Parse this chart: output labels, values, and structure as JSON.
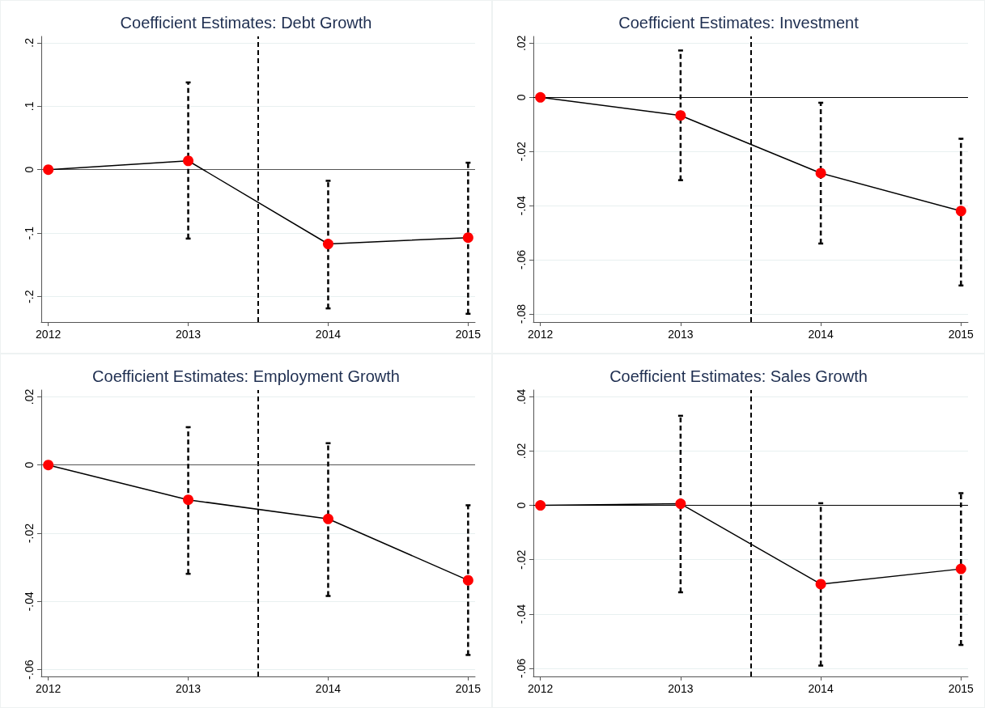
{
  "chart_data": [
    {
      "type": "line",
      "title": "Coefficient Estimates: Debt Growth",
      "x": [
        2012,
        2013,
        2014,
        2015
      ],
      "series": [
        {
          "color": "#ff0000",
          "values": [
            0,
            0.014,
            -0.117,
            -0.107
          ],
          "errors": [
            null,
            [
              -0.1085,
              0.1375
            ],
            [
              -0.2185,
              -0.0175
            ],
            [
              -0.227,
              0.011
            ]
          ]
        }
      ],
      "xlim": [
        2011.95,
        2015.05
      ],
      "xticks": [
        2012,
        2013,
        2014,
        2015
      ],
      "ylim": [
        -0.24,
        0.21
      ],
      "yticks": [
        {
          "value": -0.2,
          "label": "-.2"
        },
        {
          "value": -0.1,
          "label": "-.1"
        },
        {
          "value": 0,
          "label": "0"
        },
        {
          "value": 0.1,
          "label": ".1"
        },
        {
          "value": 0.2,
          "label": ".2"
        }
      ],
      "ref_lines": [
        {
          "axis": "x",
          "value": 2013.5,
          "color": "#000000",
          "line_style": "dashed"
        },
        {
          "axis": "y",
          "value": 0,
          "color": "#555555",
          "line_style": "solid"
        }
      ],
      "grid": "y",
      "marker": "circle",
      "line_style": "solid"
    },
    {
      "type": "line",
      "title": "Coefficient Estimates: Investment",
      "x": [
        2012,
        2013,
        2014,
        2015
      ],
      "series": [
        {
          "color": "#ff0000",
          "values": [
            0,
            -0.0067,
            -0.028,
            -0.042
          ],
          "errors": [
            null,
            [
              -0.0306,
              0.0173
            ],
            [
              -0.054,
              -0.002
            ],
            [
              -0.0695,
              -0.0153
            ]
          ]
        }
      ],
      "xlim": [
        2011.95,
        2015.05
      ],
      "xticks": [
        2012,
        2013,
        2014,
        2015
      ],
      "ylim": [
        -0.083,
        0.0225
      ],
      "yticks": [
        {
          "value": -0.08,
          "label": "-.08"
        },
        {
          "value": -0.06,
          "label": "-.06"
        },
        {
          "value": -0.04,
          "label": "-.04"
        },
        {
          "value": -0.02,
          "label": "-.02"
        },
        {
          "value": 0,
          "label": "0"
        },
        {
          "value": 0.02,
          "label": ".02"
        }
      ],
      "ref_lines": [
        {
          "axis": "x",
          "value": 2013.5,
          "color": "#000000",
          "line_style": "dashed"
        },
        {
          "axis": "y",
          "value": 0,
          "color": "#000000",
          "line_style": "solid"
        }
      ],
      "grid": "y",
      "marker": "circle",
      "line_style": "solid"
    },
    {
      "type": "line",
      "title": "Coefficient Estimates: Employment Growth",
      "x": [
        2012,
        2013,
        2014,
        2015
      ],
      "series": [
        {
          "color": "#ff0000",
          "values": [
            0,
            -0.0102,
            -0.0158,
            -0.0338
          ],
          "errors": [
            null,
            [
              -0.0319,
              0.0111
            ],
            [
              -0.0384,
              0.0064
            ],
            [
              -0.0557,
              -0.0118
            ]
          ]
        }
      ],
      "xlim": [
        2011.95,
        2015.05
      ],
      "xticks": [
        2012,
        2013,
        2014,
        2015
      ],
      "ylim": [
        -0.062,
        0.022
      ],
      "yticks": [
        {
          "value": -0.06,
          "label": "-.06"
        },
        {
          "value": -0.04,
          "label": "-.04"
        },
        {
          "value": -0.02,
          "label": "-.02"
        },
        {
          "value": 0,
          "label": "0"
        },
        {
          "value": 0.02,
          "label": ".02"
        }
      ],
      "ref_lines": [
        {
          "axis": "x",
          "value": 2013.5,
          "color": "#000000",
          "line_style": "dashed"
        },
        {
          "axis": "y",
          "value": 0,
          "color": "#555555",
          "line_style": "solid"
        }
      ],
      "grid": "y",
      "marker": "circle",
      "line_style": "solid"
    },
    {
      "type": "line",
      "title": "Coefficient Estimates: Sales Growth",
      "x": [
        2012,
        2013,
        2014,
        2015
      ],
      "series": [
        {
          "color": "#ff0000",
          "values": [
            0,
            0.0006,
            -0.029,
            -0.0234
          ],
          "errors": [
            null,
            [
              -0.032,
              0.033
            ],
            [
              -0.059,
              0.0008
            ],
            [
              -0.0514,
              0.0045
            ]
          ]
        }
      ],
      "xlim": [
        2011.95,
        2015.05
      ],
      "xticks": [
        2012,
        2013,
        2014,
        2015
      ],
      "ylim": [
        -0.063,
        0.0425
      ],
      "yticks": [
        {
          "value": -0.06,
          "label": "-.06"
        },
        {
          "value": -0.04,
          "label": "-.04"
        },
        {
          "value": -0.02,
          "label": "-.02"
        },
        {
          "value": 0,
          "label": "0"
        },
        {
          "value": 0.02,
          "label": ".02"
        },
        {
          "value": 0.04,
          "label": ".04"
        }
      ],
      "ref_lines": [
        {
          "axis": "x",
          "value": 2013.5,
          "color": "#000000",
          "line_style": "dashed"
        },
        {
          "axis": "y",
          "value": 0,
          "color": "#000000",
          "line_style": "solid"
        }
      ],
      "grid": "y",
      "marker": "circle",
      "line_style": "solid"
    }
  ]
}
